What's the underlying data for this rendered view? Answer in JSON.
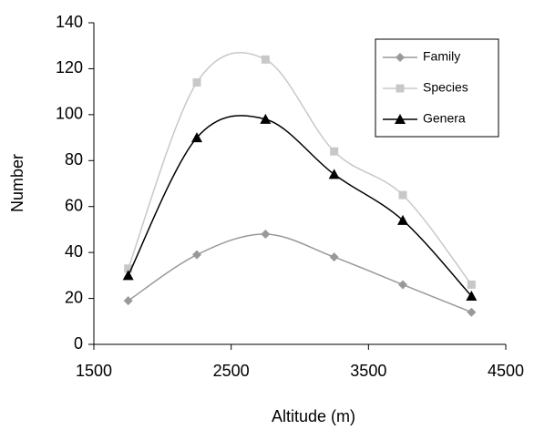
{
  "chart_data": {
    "type": "line",
    "x_label": "Altitude (m)",
    "y_label": "Number",
    "x": [
      1750,
      2250,
      2750,
      3250,
      3750,
      4250
    ],
    "series": [
      {
        "name": "Family",
        "color": "#999999",
        "marker": "diamond",
        "values": [
          19,
          39,
          48,
          38,
          26,
          14
        ]
      },
      {
        "name": "Species",
        "color": "#c8c8c8",
        "marker": "square",
        "values": [
          33,
          114,
          124,
          84,
          65,
          26
        ]
      },
      {
        "name": "Genera",
        "color": "#000000",
        "marker": "triangle",
        "values": [
          30,
          90,
          98,
          74,
          54,
          21
        ]
      }
    ],
    "xlim": [
      1500,
      4500
    ],
    "xticks": [
      1500,
      2500,
      3500,
      4500
    ],
    "ylim": [
      0,
      140
    ],
    "yticks": [
      0,
      20,
      40,
      60,
      80,
      100,
      120,
      140
    ],
    "smooth": true,
    "legend": "upper right"
  }
}
